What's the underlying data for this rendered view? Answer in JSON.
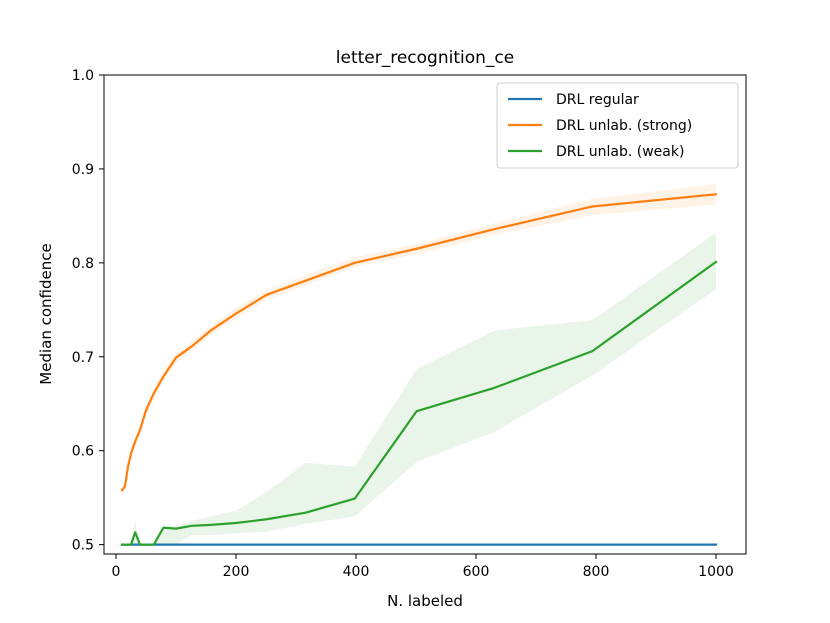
{
  "chart_data": {
    "type": "line",
    "title": "letter_recognition_ce",
    "xlabel": "N. labeled",
    "ylabel": "Median confidence",
    "xlim": [
      -20,
      1050
    ],
    "ylim": [
      0.49,
      1.0
    ],
    "xticks": [
      0,
      200,
      400,
      600,
      800,
      1000
    ],
    "yticks": [
      0.5,
      0.6,
      0.7,
      0.8,
      0.9,
      1.0
    ],
    "xtick_labels": [
      "0",
      "200",
      "400",
      "600",
      "800",
      "1000"
    ],
    "ytick_labels": [
      "0.5",
      "0.6",
      "0.7",
      "0.8",
      "0.9",
      "1.0"
    ],
    "grid": false,
    "legend_position": "top-right",
    "series": [
      {
        "name": "DRL regular",
        "color": "#1f77b4",
        "x": [
          10,
          1000
        ],
        "y": [
          0.5,
          0.5
        ]
      },
      {
        "name": "DRL unlab. (strong)",
        "color": "#ff7f0e",
        "x": [
          10,
          15,
          20,
          25,
          32,
          40,
          50,
          63,
          79,
          100,
          126,
          158,
          200,
          251,
          316,
          398,
          501,
          631,
          794,
          1000
        ],
        "y": [
          0.558,
          0.562,
          0.583,
          0.597,
          0.61,
          0.622,
          0.643,
          0.661,
          0.679,
          0.699,
          0.711,
          0.728,
          0.746,
          0.766,
          0.781,
          0.8,
          0.815,
          0.836,
          0.86,
          0.873
        ],
        "band_lower": [
          0.553,
          0.557,
          0.578,
          0.592,
          0.605,
          0.617,
          0.638,
          0.656,
          0.674,
          0.694,
          0.706,
          0.723,
          0.741,
          0.761,
          0.776,
          0.796,
          0.809,
          0.83,
          0.851,
          0.862
        ],
        "band_upper": [
          0.563,
          0.567,
          0.588,
          0.602,
          0.615,
          0.627,
          0.648,
          0.666,
          0.684,
          0.704,
          0.716,
          0.733,
          0.752,
          0.771,
          0.787,
          0.806,
          0.82,
          0.842,
          0.868,
          0.884
        ]
      },
      {
        "name": "DRL unlab. (weak)",
        "color": "#2ca02c",
        "x": [
          10,
          15,
          20,
          25,
          32,
          40,
          50,
          63,
          79,
          100,
          126,
          158,
          200,
          251,
          316,
          398,
          501,
          631,
          794,
          1000
        ],
        "y": [
          0.5,
          0.5,
          0.5,
          0.5,
          0.513,
          0.5,
          0.5,
          0.5,
          0.518,
          0.517,
          0.52,
          0.521,
          0.523,
          0.527,
          0.534,
          0.549,
          0.642,
          0.667,
          0.706,
          0.801
        ],
        "band_lower": [
          0.5,
          0.5,
          0.5,
          0.5,
          0.5,
          0.5,
          0.5,
          0.5,
          0.5,
          0.5,
          0.51,
          0.51,
          0.512,
          0.514,
          0.522,
          0.53,
          0.588,
          0.62,
          0.68,
          0.772
        ],
        "band_upper": [
          0.5,
          0.5,
          0.5,
          0.5,
          0.525,
          0.5,
          0.5,
          0.5,
          0.52,
          0.52,
          0.525,
          0.53,
          0.536,
          0.556,
          0.587,
          0.583,
          0.687,
          0.728,
          0.739,
          0.832
        ]
      }
    ]
  }
}
